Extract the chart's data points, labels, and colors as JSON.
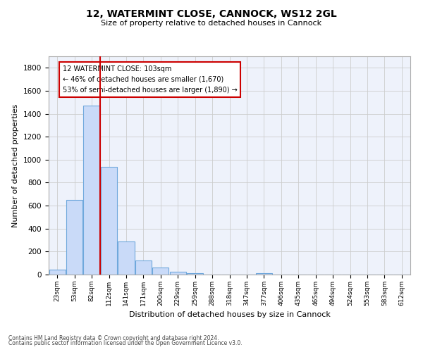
{
  "title1": "12, WATERMINT CLOSE, CANNOCK, WS12 2GL",
  "title2": "Size of property relative to detached houses in Cannock",
  "xlabel": "Distribution of detached houses by size in Cannock",
  "ylabel": "Number of detached properties",
  "bar_labels": [
    "23sqm",
    "53sqm",
    "82sqm",
    "112sqm",
    "141sqm",
    "171sqm",
    "200sqm",
    "229sqm",
    "259sqm",
    "288sqm",
    "318sqm",
    "347sqm",
    "377sqm",
    "406sqm",
    "435sqm",
    "465sqm",
    "494sqm",
    "524sqm",
    "553sqm",
    "583sqm",
    "612sqm"
  ],
  "bar_values": [
    40,
    650,
    1470,
    935,
    290,
    125,
    60,
    22,
    10,
    0,
    0,
    0,
    10,
    0,
    0,
    0,
    0,
    0,
    0,
    0,
    0
  ],
  "bar_color": "#c9daf8",
  "bar_edge_color": "#6fa8dc",
  "grid_color": "#cccccc",
  "vline_color": "#cc0000",
  "annotation_text": "12 WATERMINT CLOSE: 103sqm\n← 46% of detached houses are smaller (1,670)\n53% of semi-detached houses are larger (1,890) →",
  "annotation_box_color": "#cc0000",
  "ylim": [
    0,
    1900
  ],
  "yticks": [
    0,
    200,
    400,
    600,
    800,
    1000,
    1200,
    1400,
    1600,
    1800
  ],
  "footnote1": "Contains HM Land Registry data © Crown copyright and database right 2024.",
  "footnote2": "Contains public sector information licensed under the Open Government Licence v3.0.",
  "bg_color": "#ffffff",
  "ax_facecolor": "#eef2fb"
}
